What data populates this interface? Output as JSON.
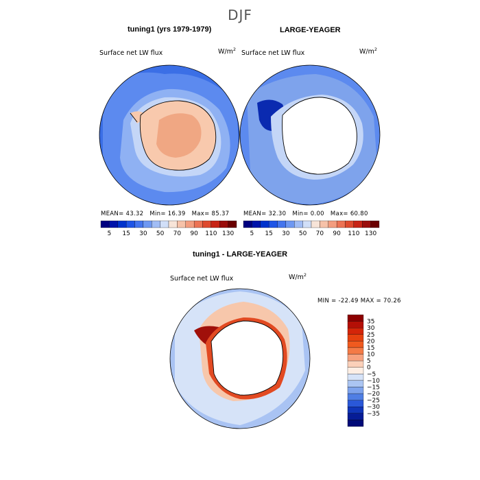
{
  "page": {
    "season": "DJF"
  },
  "panels": [
    {
      "title": "tuning1 (yrs 1979-1979)",
      "variable": "Surface net LW flux",
      "units_base": "W/m",
      "units_exp": "2",
      "stats": {
        "mean": "MEAN=  43.32",
        "min": "Min=  16.39",
        "max": "Max=  85.37"
      }
    },
    {
      "title": "LARGE-YEAGER",
      "variable": "Surface net LW flux",
      "units_base": "W/m",
      "units_exp": "2",
      "stats": {
        "mean": "MEAN=  32.30",
        "min": "Min=   0.00",
        "max": "Max=  60.80"
      }
    },
    {
      "title": "tuning1 - LARGE-YEAGER",
      "variable": "Surface net LW flux",
      "units_base": "W/m",
      "units_exp": "2",
      "stats": {
        "minmax": "MIN = -22.49 MAX =  70.26"
      }
    }
  ],
  "colorbar_top": {
    "labels": [
      "5",
      "15",
      "30",
      "50",
      "70",
      "90",
      "110",
      "130"
    ],
    "colors": [
      "#00007f",
      "#0014aa",
      "#0033cc",
      "#1f55e6",
      "#4475ee",
      "#6e98f2",
      "#a1bdf5",
      "#d1dff8",
      "#f7e4d8",
      "#f6c2a9",
      "#f39d7f",
      "#ec7354",
      "#de4a2e",
      "#c72415",
      "#9a0d0b",
      "#6a0000"
    ]
  },
  "colorbar_diff": {
    "labels": [
      "35",
      "30",
      "25",
      "20",
      "15",
      "10",
      "5",
      "0",
      "−5",
      "−10",
      "−15",
      "−20",
      "−25",
      "−30",
      "−35"
    ],
    "colors": [
      "#8c0000",
      "#b40f06",
      "#d42509",
      "#e6410f",
      "#f05a1f",
      "#f47a46",
      "#f7a27f",
      "#fbd0b9",
      "#fdeee4",
      "#d6e3f8",
      "#abc5f2",
      "#7ea3ec",
      "#4f7ee4",
      "#2a58d8",
      "#1035b8",
      "#061c96",
      "#000a78"
    ]
  },
  "map_colors": {
    "ocean_deep": "#3b6fe6",
    "ocean_mid": "#5c8aef",
    "ocean_light": "#8fb1f3",
    "ice_edge": "#c4d6f7",
    "land_warm": "#f8c9ad",
    "land_hot": "#f0a783",
    "white": "#ffffff",
    "neg_dark": "#0a2ab0",
    "pos_dark": "#a0100a",
    "pos_mid": "#e24a22",
    "pos_light": "#f7c7ab",
    "diff_ocean": "#a9c3f3"
  }
}
